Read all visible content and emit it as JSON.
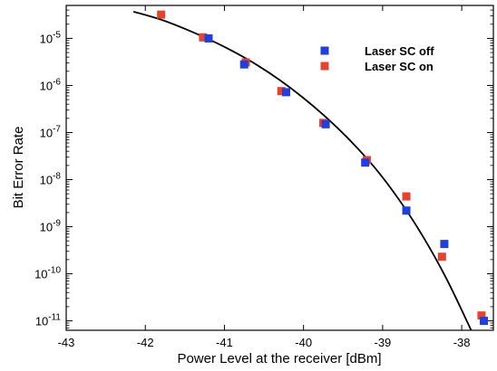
{
  "chart_data": {
    "type": "scatter",
    "title": "",
    "xlabel": "Power Level at the receiver [dBm]",
    "ylabel": "Bit Error Rate",
    "xlim": [
      -43,
      -37.6
    ],
    "ylim_log10": [
      -11.2,
      -4.3
    ],
    "y_scale": "log",
    "grid": false,
    "legend_position": "top-right",
    "x_ticks": [
      -43,
      -42,
      -41,
      -40,
      -39,
      -38
    ],
    "x_tick_labels": [
      "-43",
      "-42",
      "-41",
      "-40",
      "-39",
      "-38"
    ],
    "y_ticks": [
      1e-05,
      1e-06,
      1e-07,
      1e-08,
      1e-09,
      1e-10,
      1e-11
    ],
    "y_tick_labels": [
      {
        "base": "10",
        "exp": "-5"
      },
      {
        "base": "10",
        "exp": "-6"
      },
      {
        "base": "10",
        "exp": "-7"
      },
      {
        "base": "10",
        "exp": "-8"
      },
      {
        "base": "10",
        "exp": "-9"
      },
      {
        "base": "10",
        "exp": "-10"
      },
      {
        "base": "10",
        "exp": "-11"
      }
    ],
    "series": [
      {
        "name": "Laser SC off",
        "color": "#1f3fe0",
        "marker": "square",
        "x": [
          -41.2,
          -40.75,
          -40.22,
          -39.72,
          -39.22,
          -38.7,
          -38.22,
          -37.72
        ],
        "y": [
          1e-05,
          2.8e-06,
          7.2e-07,
          1.5e-07,
          2.3e-08,
          2.2e-09,
          4.3e-10,
          1e-11
        ]
      },
      {
        "name": "Laser SC on",
        "color": "#e8412c",
        "marker": "square",
        "x": [
          -41.8,
          -41.27,
          -40.73,
          -40.28,
          -39.75,
          -39.2,
          -38.7,
          -38.25,
          -37.75
        ],
        "y": [
          3.2e-05,
          1.05e-05,
          3.1e-06,
          7.6e-07,
          1.6e-07,
          2.6e-08,
          4.4e-09,
          2.3e-10,
          1.3e-11
        ]
      },
      {
        "type": "line",
        "color": "#000000",
        "x": [
          -42.15,
          -41.8,
          -41.5,
          -41.2,
          -40.9,
          -40.6,
          -40.3,
          -40.0,
          -39.7,
          -39.4,
          -39.1,
          -38.8,
          -38.5,
          -38.2,
          -37.9,
          -37.7
        ],
        "y": [
          3.7e-05,
          2.5e-05,
          1.6e-05,
          9.6e-06,
          5.4e-06,
          2.8e-06,
          1.3e-06,
          5.4e-07,
          2e-07,
          6.5e-08,
          1.8e-08,
          3.9e-09,
          6.6e-10,
          8.3e-11,
          7.4e-12,
          1.3e-12
        ]
      }
    ]
  }
}
